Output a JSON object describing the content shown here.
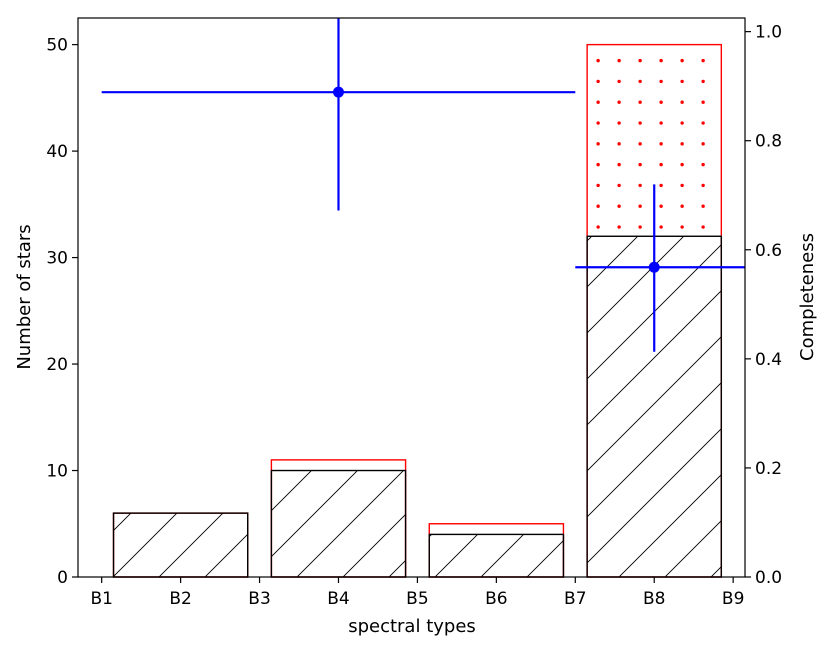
{
  "chart_data": {
    "type": "bar",
    "x_tick_labels": [
      "B1",
      "B2",
      "B3",
      "B4",
      "B5",
      "B6",
      "B7",
      "B8",
      "B9"
    ],
    "xlabel": "spectral types",
    "ylabel_left": "Number of stars",
    "ylabel_right": "Completeness",
    "ylim_left": [
      0,
      52.5
    ],
    "ylim_right": [
      0,
      1.025
    ],
    "y_ticks_left": [
      0,
      10,
      20,
      30,
      40,
      50
    ],
    "y_ticks_right": [
      0.0,
      0.2,
      0.4,
      0.6,
      0.8,
      1.0
    ],
    "y_tick_labels_right": [
      "0.0",
      "0.2",
      "0.4",
      "0.6",
      "0.8",
      "1.0"
    ],
    "xlim": [
      0.7,
      9.15
    ],
    "grid": false,
    "legend": "none",
    "bins": [
      {
        "x_start": 1.15,
        "x_end": 2.85,
        "inner_count": 6,
        "outer_count": 6
      },
      {
        "x_start": 3.15,
        "x_end": 4.85,
        "inner_count": 10,
        "outer_count": 11
      },
      {
        "x_start": 5.15,
        "x_end": 6.85,
        "inner_count": 4,
        "outer_count": 5
      },
      {
        "x_start": 7.15,
        "x_end": 8.85,
        "inner_count": 32,
        "outer_count": 50
      }
    ],
    "completeness_points": [
      {
        "x": 4,
        "y": 0.889,
        "x_err": [
          1,
          7
        ],
        "y_err": [
          0.672,
          1.025
        ]
      },
      {
        "x": 8,
        "y": 0.568,
        "x_err": [
          7,
          9.15
        ],
        "y_err": [
          0.413,
          0.72
        ]
      }
    ],
    "colors": {
      "inner_edge": "#000000",
      "outer_edge": "#ff0000",
      "hatch_lines": "#000000",
      "dots": "#ff0000",
      "completeness": "#0000ff"
    }
  }
}
